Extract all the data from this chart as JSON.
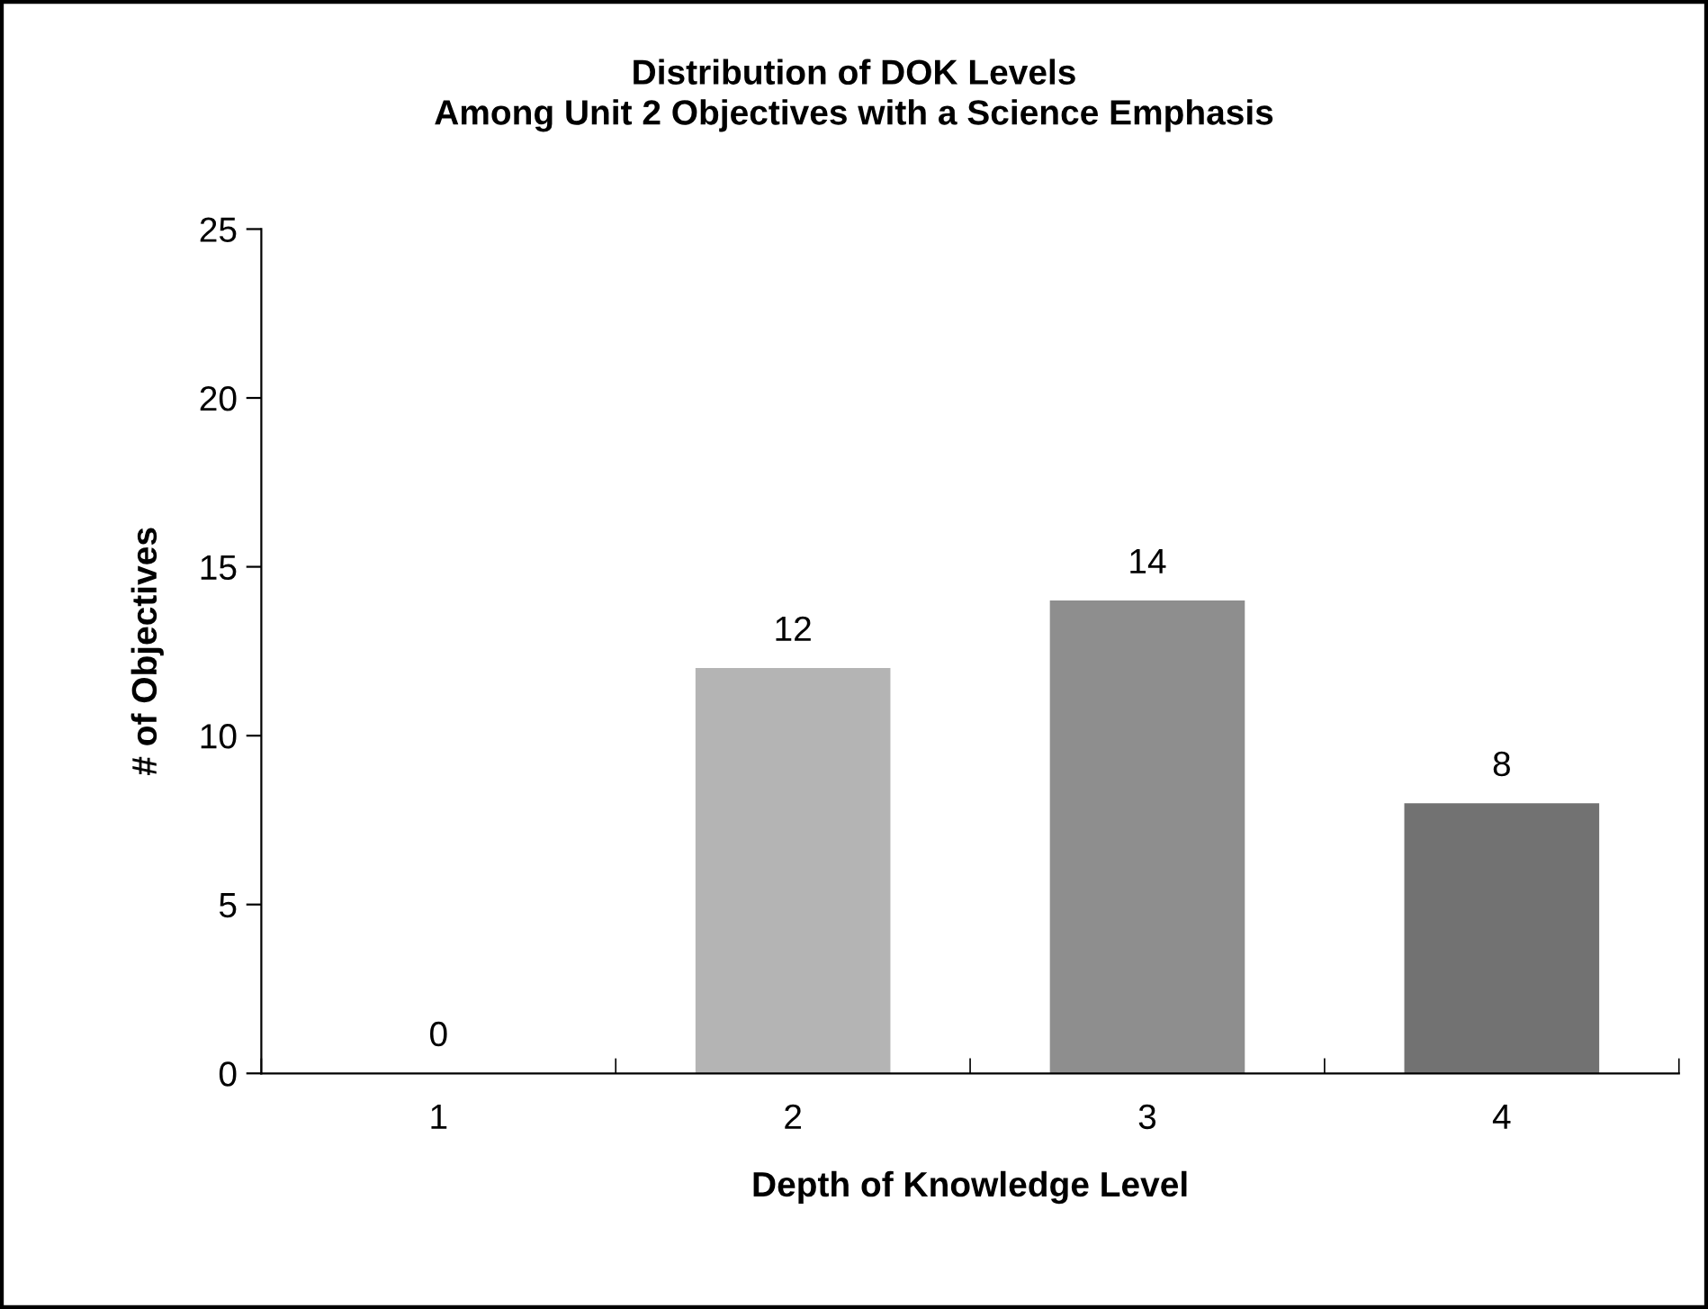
{
  "chart_data": {
    "type": "bar",
    "title": "Distribution of DOK Levels\nAmong Unit 2 Objectives with a Science Emphasis",
    "xlabel": "Depth of Knowledge Level",
    "ylabel": "# of Objectives",
    "categories": [
      "1",
      "2",
      "3",
      "4"
    ],
    "values": [
      0,
      12,
      14,
      8
    ],
    "colors": [
      "#c8c8c8",
      "#b4b4b4",
      "#8e8e8e",
      "#727272"
    ],
    "ylim": [
      0,
      25
    ],
    "yticks": [
      0,
      5,
      10,
      15,
      20,
      25
    ],
    "grid": false,
    "data_labels": true
  }
}
